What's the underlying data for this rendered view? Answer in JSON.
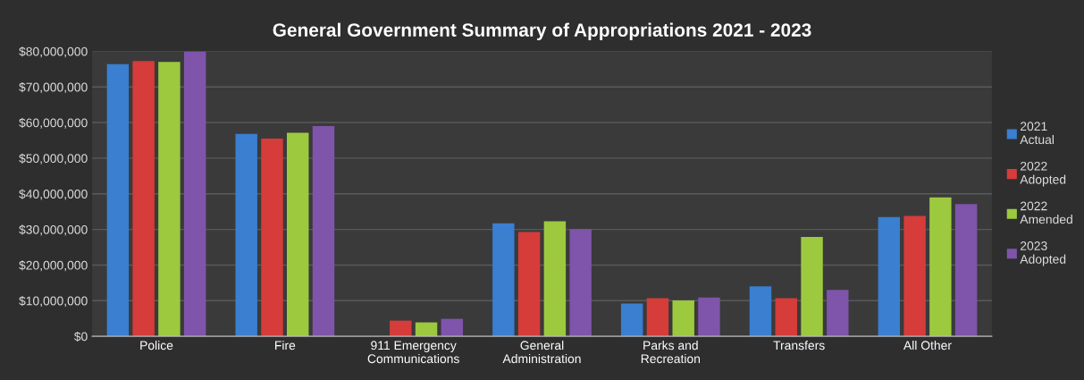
{
  "chart_data": {
    "type": "bar",
    "title": "General Government Summary of Appropriations 2021 - 2023",
    "categories": [
      "Police",
      "Fire",
      "911 Emergency\nCommunications",
      "General\nAdministration",
      "Parks and\nRecreation",
      "Transfers",
      "All Other"
    ],
    "series": [
      {
        "name": "2021\nActual",
        "color": "#3a7fd0",
        "values": [
          76400000,
          56800000,
          0,
          31700000,
          9200000,
          14000000,
          33500000
        ]
      },
      {
        "name": "2022\nAdopted",
        "color": "#d63c3a",
        "values": [
          77300000,
          55500000,
          4400000,
          29300000,
          10700000,
          10700000,
          33800000
        ]
      },
      {
        "name": "2022\nAmended",
        "color": "#9dc93f",
        "values": [
          77000000,
          57100000,
          3900000,
          32300000,
          10100000,
          27900000,
          39000000
        ]
      },
      {
        "name": "2023\nAdopted",
        "color": "#7e55aa",
        "values": [
          80000000,
          59000000,
          4900000,
          30100000,
          10900000,
          13000000,
          37100000
        ]
      }
    ],
    "ylim": [
      0,
      80000000
    ],
    "yticks": [
      {
        "value": 0,
        "label": "$0"
      },
      {
        "value": 10000000,
        "label": "$10,000,000"
      },
      {
        "value": 20000000,
        "label": "$20,000,000"
      },
      {
        "value": 30000000,
        "label": "$30,000,000"
      },
      {
        "value": 40000000,
        "label": "$40,000,000"
      },
      {
        "value": 50000000,
        "label": "$50,000,000"
      },
      {
        "value": 60000000,
        "label": "$60,000,000"
      },
      {
        "value": 70000000,
        "label": "$70,000,000"
      },
      {
        "value": 80000000,
        "label": "$80,000,000"
      }
    ],
    "grid": "y",
    "legend": "right"
  }
}
